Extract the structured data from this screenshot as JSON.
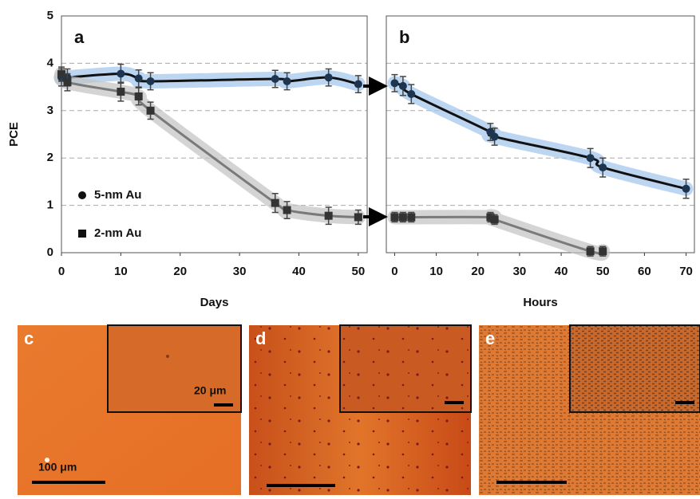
{
  "chart_data": [
    {
      "type": "line",
      "label": "a",
      "ylabel": "PCE",
      "xlabel": "Days",
      "xlim": [
        0,
        51.5
      ],
      "xticks": [
        0,
        10,
        20,
        30,
        40,
        50
      ],
      "ylim": [
        0,
        5
      ],
      "yticks": [
        0,
        1,
        2,
        3,
        4,
        5
      ],
      "grid": true,
      "legend": "lower left",
      "series": [
        {
          "name": "5-nm Au",
          "color": "#111111",
          "glow": "#9fc4ec",
          "marker": "circle",
          "x": [
            0,
            1,
            10,
            13,
            15,
            36,
            38,
            45,
            50
          ],
          "values": [
            3.7,
            3.7,
            3.78,
            3.68,
            3.62,
            3.67,
            3.62,
            3.7,
            3.56
          ],
          "errors": [
            0.18,
            0.18,
            0.2,
            0.18,
            0.18,
            0.18,
            0.18,
            0.18,
            0.18
          ]
        },
        {
          "name": "2-nm Au",
          "color": "#7a7a7a",
          "glow": "#c2c2c2",
          "marker": "square",
          "x": [
            0,
            1,
            10,
            13,
            15,
            36,
            38,
            45,
            50
          ],
          "values": [
            3.77,
            3.6,
            3.4,
            3.3,
            3.0,
            1.05,
            0.9,
            0.78,
            0.75
          ],
          "errors": [
            0.15,
            0.18,
            0.2,
            0.18,
            0.18,
            0.2,
            0.18,
            0.18,
            0.15
          ]
        }
      ]
    },
    {
      "type": "line",
      "label": "b",
      "xlabel": "Hours",
      "xlim": [
        -2,
        72
      ],
      "xticks": [
        0,
        10,
        20,
        30,
        40,
        50,
        60,
        70
      ],
      "ylim": [
        0,
        5
      ],
      "yticks": [
        0,
        1,
        2,
        3,
        4,
        5
      ],
      "grid": true,
      "series": [
        {
          "color": "#111111",
          "glow": "#9fc4ec",
          "marker": "circle",
          "x": [
            0,
            2,
            4,
            23,
            24,
            47,
            50,
            70
          ],
          "values": [
            3.58,
            3.52,
            3.35,
            2.55,
            2.45,
            2.0,
            1.8,
            1.35
          ],
          "errors": [
            0.18,
            0.2,
            0.2,
            0.18,
            0.18,
            0.2,
            0.2,
            0.2
          ]
        },
        {
          "color": "#7a7a7a",
          "glow": "#c2c2c2",
          "marker": "square",
          "x": [
            0,
            2,
            4,
            23,
            24,
            47,
            50
          ],
          "values": [
            0.75,
            0.75,
            0.75,
            0.75,
            0.7,
            0.03,
            0.03
          ],
          "errors": [
            0.1,
            0.1,
            0.1,
            0.1,
            0.1,
            0.1,
            0.1
          ]
        }
      ]
    }
  ],
  "images": [
    {
      "label": "c",
      "scale_label": "100 μm",
      "inset_scale_label": "20 μm"
    },
    {
      "label": "d"
    },
    {
      "label": "e"
    }
  ]
}
